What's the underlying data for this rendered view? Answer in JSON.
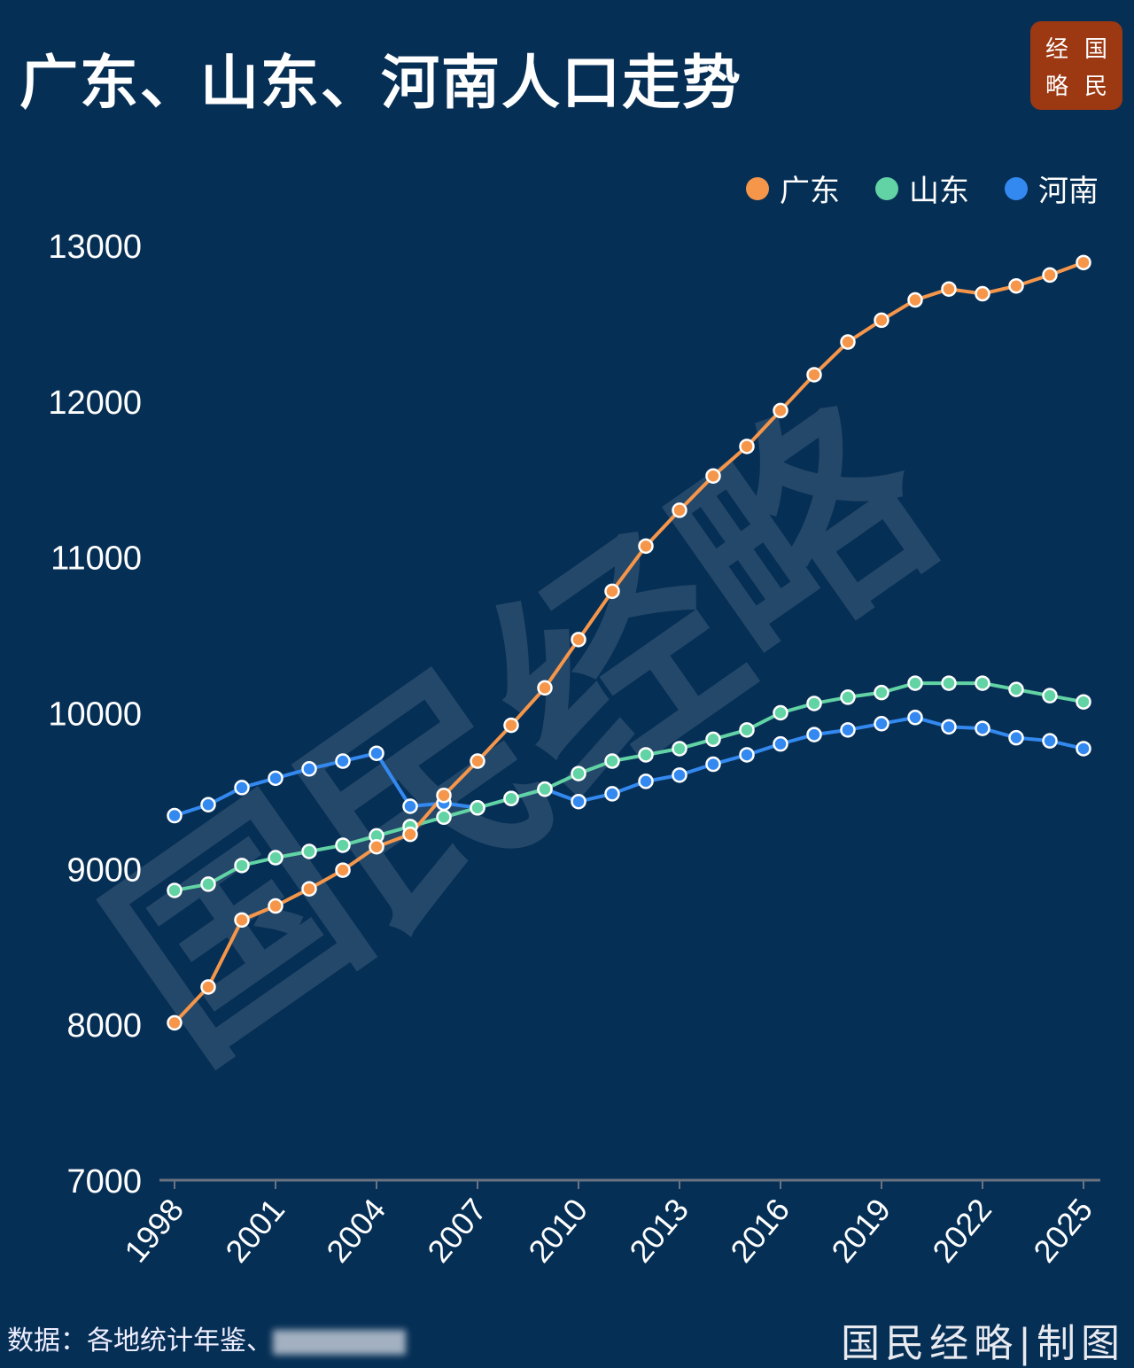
{
  "header": {
    "title": "广东、山东、河南人口走势",
    "logo_chars": [
      "经",
      "国",
      "略",
      "民"
    ]
  },
  "footer": {
    "source_label": "数据：各地统计年鉴、",
    "credit": "国民经略|制图"
  },
  "watermark": "国民经略",
  "colors": {
    "background": "#062f55",
    "guangdong": "#f5964a",
    "shandong": "#62d3a4",
    "henan": "#3389f0",
    "logo": "#9c3812"
  },
  "chart_data": {
    "type": "line",
    "title": "广东、山东、河南人口走势",
    "xlabel": "",
    "ylabel": "",
    "ylim": [
      7000,
      13000
    ],
    "yticks": [
      7000,
      8000,
      9000,
      10000,
      11000,
      12000,
      13000
    ],
    "xticks": [
      "1998",
      "2001",
      "2004",
      "2007",
      "2010",
      "2013",
      "2016",
      "2019",
      "2022",
      "2025"
    ],
    "grid": false,
    "legend_position": "top-right",
    "x": [
      1998,
      1999,
      2000,
      2001,
      2002,
      2003,
      2004,
      2005,
      2006,
      2007,
      2008,
      2009,
      2010,
      2011,
      2012,
      2013,
      2014,
      2015,
      2016,
      2017,
      2018,
      2019,
      2020,
      2021,
      2022,
      2023,
      2024,
      2025
    ],
    "series": [
      {
        "name": "广东",
        "color": "#f5964a",
        "values": [
          8010,
          8240,
          8670,
          8760,
          8870,
          8990,
          9140,
          9220,
          9470,
          9690,
          9920,
          10160,
          10470,
          10780,
          11070,
          11300,
          11520,
          11710,
          11940,
          12170,
          12380,
          12520,
          12650,
          12720,
          12690,
          12740,
          12810,
          12890
        ]
      },
      {
        "name": "山东",
        "color": "#62d3a4",
        "values": [
          8860,
          8900,
          9020,
          9070,
          9110,
          9150,
          9210,
          9270,
          9330,
          9390,
          9450,
          9510,
          9610,
          9690,
          9730,
          9770,
          9830,
          9890,
          10000,
          10060,
          10100,
          10130,
          10190,
          10190,
          10190,
          10150,
          10110,
          10070
        ]
      },
      {
        "name": "河南",
        "color": "#3389f0",
        "values": [
          9340,
          9410,
          9520,
          9580,
          9640,
          9690,
          9740,
          9400,
          9420,
          9390,
          9450,
          9510,
          9430,
          9480,
          9560,
          9600,
          9670,
          9730,
          9800,
          9860,
          9890,
          9930,
          9970,
          9910,
          9900,
          9840,
          9820,
          9770
        ]
      }
    ]
  }
}
